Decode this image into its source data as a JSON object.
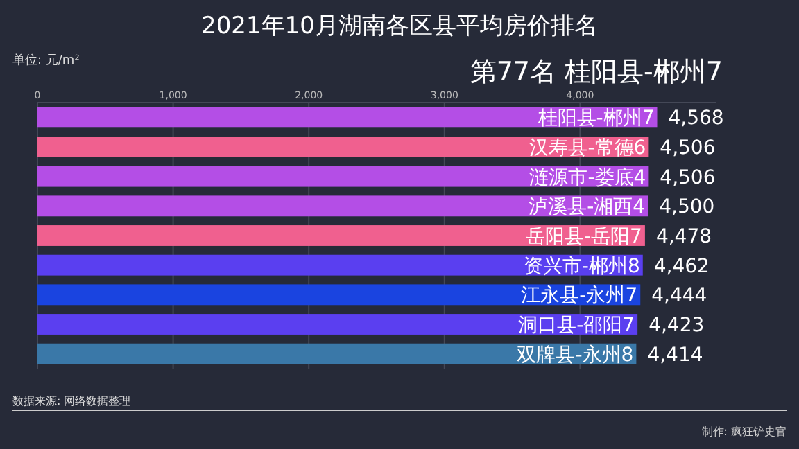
{
  "chart_data": {
    "type": "bar",
    "orientation": "horizontal",
    "title": "2021年10月湖南各区县平均房价排名",
    "subtitle": "第77名 桂阳县-郴州7",
    "xlabel": "单位: 元/m²",
    "categories": [
      "桂阳县-郴州7",
      "汉寿县-常德6",
      "涟源市-娄底4",
      "泸溪县-湘西4",
      "岳阳县-岳阳7",
      "资兴市-郴州8",
      "江永县-永州7",
      "洞口县-邵阳7",
      "双牌县-永州8"
    ],
    "values": [
      4568,
      4506,
      4506,
      4500,
      4478,
      4462,
      4444,
      4423,
      4414
    ],
    "value_labels": [
      "4,568",
      "4,506",
      "4,506",
      "4,500",
      "4,478",
      "4,462",
      "4,444",
      "4,423",
      "4,414"
    ],
    "colors": [
      "#b44ee6",
      "#f0608f",
      "#b44ee6",
      "#b44ee6",
      "#f0608f",
      "#5a3ff0",
      "#1a44e0",
      "#5b3ff0",
      "#3a78a8"
    ],
    "xlim": [
      0,
      5000
    ],
    "xticks": [
      0,
      {
        "value": 1000,
        "label": "1,000"
      },
      {
        "value": 2000,
        "label": "2,000"
      },
      {
        "value": 3000,
        "label": "3,000"
      },
      {
        "value": 4000,
        "label": "4,000"
      }
    ],
    "grid": "x",
    "annotations": [
      "数据来源: 网络数据整理",
      "制作: 疯狂铲史官"
    ]
  }
}
